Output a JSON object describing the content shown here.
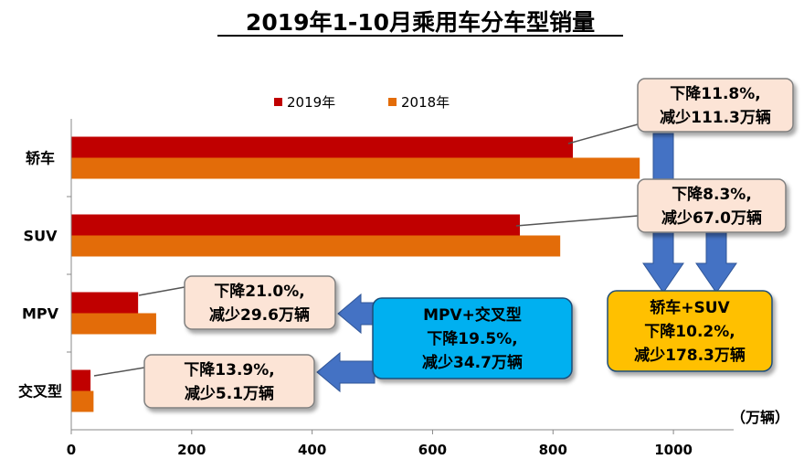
{
  "chart_data": {
    "type": "bar",
    "orientation": "horizontal",
    "title": "2019年1-10月乘用车分车型销量",
    "categories": [
      "轿车",
      "SUV",
      "MPV",
      "交叉型"
    ],
    "series": [
      {
        "name": "2019年",
        "values": [
          833,
          745,
          111,
          32
        ],
        "color": "#c00000"
      },
      {
        "name": "2018年",
        "values": [
          944,
          812,
          141,
          37
        ],
        "color": "#e36c09"
      }
    ],
    "xlim": [
      0,
      1100
    ],
    "xticks": [
      0,
      200,
      400,
      600,
      800,
      1000
    ],
    "unit_label": "（万辆）",
    "legend_position": "top",
    "grid": false,
    "annotations": [
      {
        "lines": [
          "下降11.8%,",
          "减少111.3万辆"
        ],
        "target": "轿车"
      },
      {
        "lines": [
          "下降8.3%,",
          "减少67.0万辆"
        ],
        "target": "SUV"
      },
      {
        "lines": [
          "下降21.0%,",
          "减少29.6万辆"
        ],
        "target": "MPV"
      },
      {
        "lines": [
          "下降13.9%,",
          "减少5.1万辆"
        ],
        "target": "交叉型"
      },
      {
        "lines": [
          "MPV+交叉型",
          "下降19.5%,",
          "减少34.7万辆"
        ]
      },
      {
        "lines": [
          "轿车+SUV",
          "下降10.2%,",
          "减少178.3万辆"
        ]
      }
    ],
    "colors": {
      "callout_fill": "#fce4d6",
      "blue_box": "#00b0f0",
      "yellow_box": "#ffc000",
      "arrow": "#4472c4"
    }
  }
}
